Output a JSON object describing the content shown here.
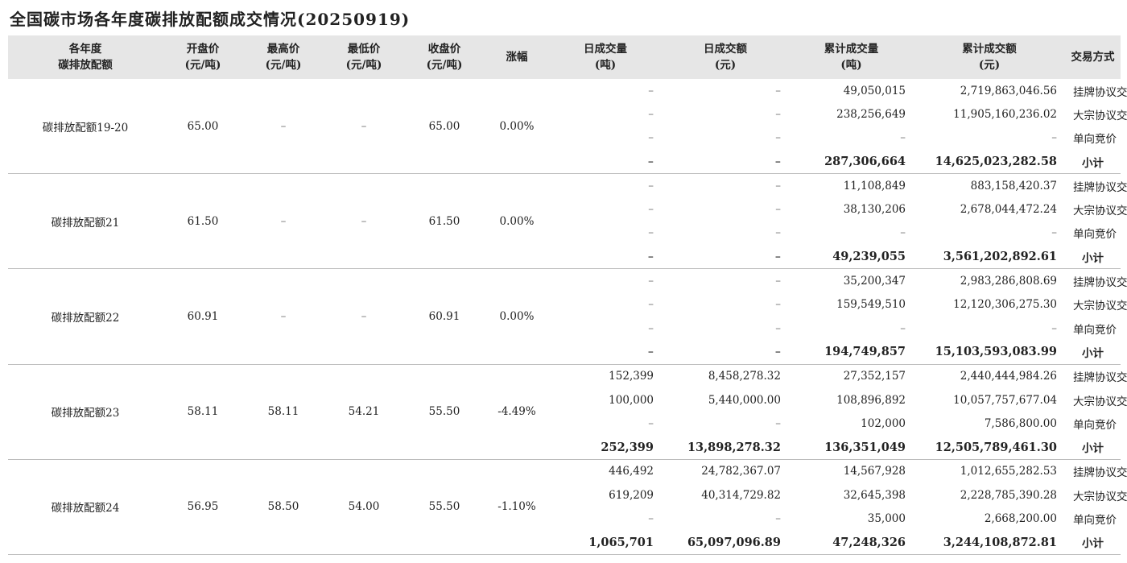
{
  "title": "全国碳市场各年度碳排放配额成交情况(20250919)",
  "headers": [
    {
      "l1": "各年度",
      "l2": "碳排放配额"
    },
    {
      "l1": "开盘价",
      "l2": "(元/吨)"
    },
    {
      "l1": "最高价",
      "l2": "(元/吨)"
    },
    {
      "l1": "最低价",
      "l2": "(元/吨)"
    },
    {
      "l1": "收盘价",
      "l2": "(元/吨)"
    },
    {
      "l1": "涨幅",
      "l2": ""
    },
    {
      "l1": "日成交量",
      "l2": "(吨)"
    },
    {
      "l1": "日成交额",
      "l2": "(元)"
    },
    {
      "l1": "累计成交量",
      "l2": "(吨)"
    },
    {
      "l1": "累计成交额",
      "l2": "(元)"
    },
    {
      "l1": "交易方式",
      "l2": ""
    }
  ],
  "groups": [
    {
      "name": "碳排放配额19-20",
      "open": "65.00",
      "high": "–",
      "low": "–",
      "close": "65.00",
      "change": "0.00%",
      "rows": [
        {
          "dvol": "–",
          "damt": "–",
          "cvol": "49,050,015",
          "camt": "2,719,863,046.56",
          "mode": "挂牌协议交易"
        },
        {
          "dvol": "–",
          "damt": "–",
          "cvol": "238,256,649",
          "camt": "11,905,160,236.02",
          "mode": "大宗协议交易"
        },
        {
          "dvol": "–",
          "damt": "–",
          "cvol": "–",
          "camt": "–",
          "mode": "单向竞价"
        },
        {
          "dvol": "–",
          "damt": "–",
          "cvol": "287,306,664",
          "camt": "14,625,023,282.58",
          "mode": "小计"
        }
      ]
    },
    {
      "name": "碳排放配额21",
      "open": "61.50",
      "high": "–",
      "low": "–",
      "close": "61.50",
      "change": "0.00%",
      "rows": [
        {
          "dvol": "–",
          "damt": "–",
          "cvol": "11,108,849",
          "camt": "883,158,420.37",
          "mode": "挂牌协议交易"
        },
        {
          "dvol": "–",
          "damt": "–",
          "cvol": "38,130,206",
          "camt": "2,678,044,472.24",
          "mode": "大宗协议交易"
        },
        {
          "dvol": "–",
          "damt": "–",
          "cvol": "–",
          "camt": "–",
          "mode": "单向竞价"
        },
        {
          "dvol": "–",
          "damt": "–",
          "cvol": "49,239,055",
          "camt": "3,561,202,892.61",
          "mode": "小计"
        }
      ]
    },
    {
      "name": "碳排放配额22",
      "open": "60.91",
      "high": "–",
      "low": "–",
      "close": "60.91",
      "change": "0.00%",
      "rows": [
        {
          "dvol": "–",
          "damt": "–",
          "cvol": "35,200,347",
          "camt": "2,983,286,808.69",
          "mode": "挂牌协议交易"
        },
        {
          "dvol": "–",
          "damt": "–",
          "cvol": "159,549,510",
          "camt": "12,120,306,275.30",
          "mode": "大宗协议交易"
        },
        {
          "dvol": "–",
          "damt": "–",
          "cvol": "–",
          "camt": "–",
          "mode": "单向竞价"
        },
        {
          "dvol": "–",
          "damt": "–",
          "cvol": "194,749,857",
          "camt": "15,103,593,083.99",
          "mode": "小计"
        }
      ]
    },
    {
      "name": "碳排放配额23",
      "open": "58.11",
      "high": "58.11",
      "low": "54.21",
      "close": "55.50",
      "change": "-4.49%",
      "rows": [
        {
          "dvol": "152,399",
          "damt": "8,458,278.32",
          "cvol": "27,352,157",
          "camt": "2,440,444,984.26",
          "mode": "挂牌协议交易"
        },
        {
          "dvol": "100,000",
          "damt": "5,440,000.00",
          "cvol": "108,896,892",
          "camt": "10,057,757,677.04",
          "mode": "大宗协议交易"
        },
        {
          "dvol": "–",
          "damt": "–",
          "cvol": "102,000",
          "camt": "7,586,800.00",
          "mode": "单向竞价"
        },
        {
          "dvol": "252,399",
          "damt": "13,898,278.32",
          "cvol": "136,351,049",
          "camt": "12,505,789,461.30",
          "mode": "小计"
        }
      ]
    },
    {
      "name": "碳排放配额24",
      "open": "56.95",
      "high": "58.50",
      "low": "54.00",
      "close": "55.50",
      "change": "-1.10%",
      "rows": [
        {
          "dvol": "446,492",
          "damt": "24,782,367.07",
          "cvol": "14,567,928",
          "camt": "1,012,655,282.53",
          "mode": "挂牌协议交易"
        },
        {
          "dvol": "619,209",
          "damt": "40,314,729.82",
          "cvol": "32,645,398",
          "camt": "2,228,785,390.28",
          "mode": "大宗协议交易"
        },
        {
          "dvol": "–",
          "damt": "–",
          "cvol": "35,000",
          "camt": "2,668,200.00",
          "mode": "单向竞价"
        },
        {
          "dvol": "1,065,701",
          "damt": "65,097,096.89",
          "cvol": "47,248,326",
          "camt": "3,244,108,872.81",
          "mode": "小计"
        }
      ]
    }
  ]
}
